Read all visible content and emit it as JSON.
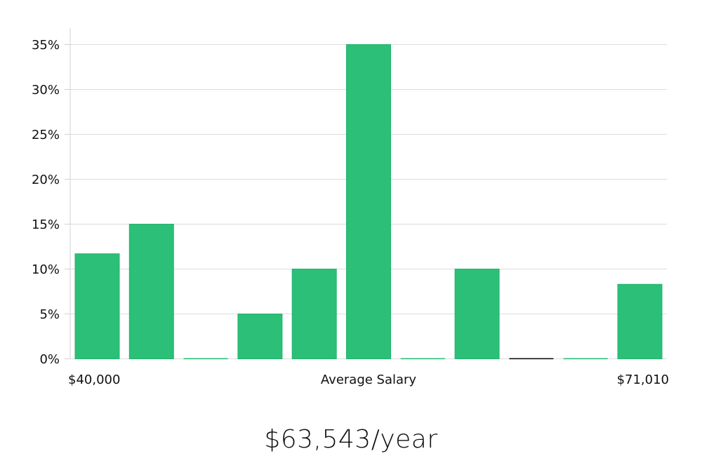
{
  "chart_data": {
    "type": "bar",
    "categories": [
      "1",
      "2",
      "3",
      "4",
      "5",
      "6",
      "7",
      "8",
      "9",
      "10",
      "11"
    ],
    "values": [
      11.7,
      15.0,
      0,
      5.0,
      10.0,
      35.0,
      0,
      10.0,
      0,
      0,
      8.3
    ],
    "ylim": [
      0,
      35
    ],
    "y_ticks": [
      0,
      5,
      10,
      15,
      20,
      25,
      30,
      35
    ],
    "y_tick_suffix": "%",
    "grid": true,
    "x_min_label": "$40,000",
    "xlabel": "Average Salary",
    "x_max_label": "$71,010",
    "bar_color": "#2bbf78",
    "zero_bar_colors": [
      "#2bbf78",
      "#2bbf78",
      "#2bbf78",
      "#2bbf78",
      "#2bbf78",
      "#2bbf78",
      "#2bbf78",
      "#2bbf78",
      "#111111",
      "#2bbf78",
      "#2bbf78"
    ]
  },
  "headline": "$63,543/year"
}
